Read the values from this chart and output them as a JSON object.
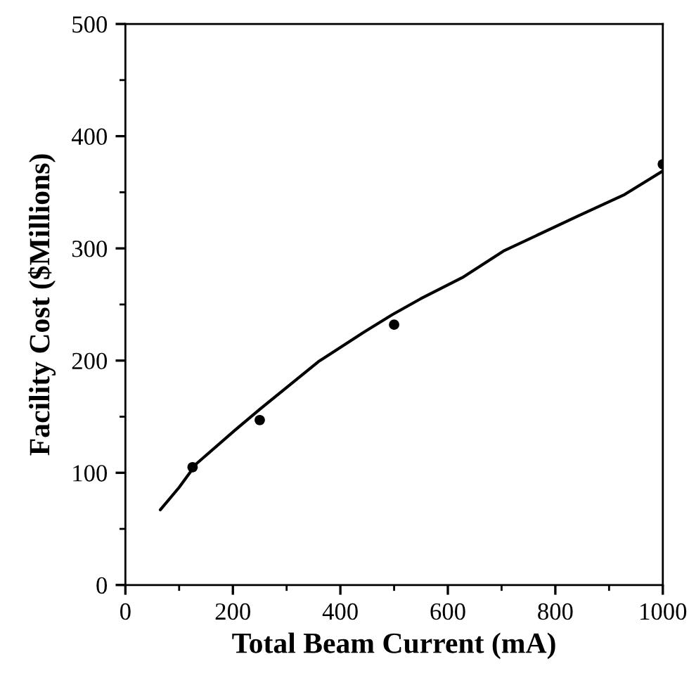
{
  "chart_data": {
    "type": "scatter",
    "xlabel": "Total Beam Current (mA)",
    "ylabel": "Facility Cost ($Millions)",
    "xlim": [
      0,
      1000
    ],
    "ylim": [
      0,
      500
    ],
    "xticks": [
      0,
      {
        "value": 100,
        "label": null
      },
      200,
      {
        "value": 300,
        "label": null
      },
      400,
      {
        "value": 500,
        "label": null
      },
      600,
      {
        "value": 700,
        "label": null
      },
      800,
      {
        "value": 900,
        "label": null
      },
      1000
    ],
    "yticks": [
      0,
      {
        "value": 50,
        "label": null
      },
      100,
      {
        "value": 150,
        "label": null
      },
      200,
      {
        "value": 250,
        "label": null
      },
      300,
      {
        "value": 350,
        "label": null
      },
      400,
      {
        "value": 450,
        "label": null
      },
      500
    ],
    "grid": false,
    "series": [
      {
        "type": "line",
        "color": "#000000",
        "marker": "none",
        "line_style": "solid",
        "x": [
          65,
          100,
          132,
          204,
          251,
          359,
          446,
          497,
          549,
          627,
          705,
          843,
          929,
          1000
        ],
        "values": [
          67,
          87,
          108,
          138,
          157,
          199,
          226,
          241,
          255,
          274,
          298,
          329,
          348,
          369
        ]
      },
      {
        "color": "#000000",
        "marker": "circle",
        "x": [
          125,
          250,
          500,
          1000
        ],
        "values": [
          105,
          147,
          232,
          375
        ]
      }
    ]
  }
}
